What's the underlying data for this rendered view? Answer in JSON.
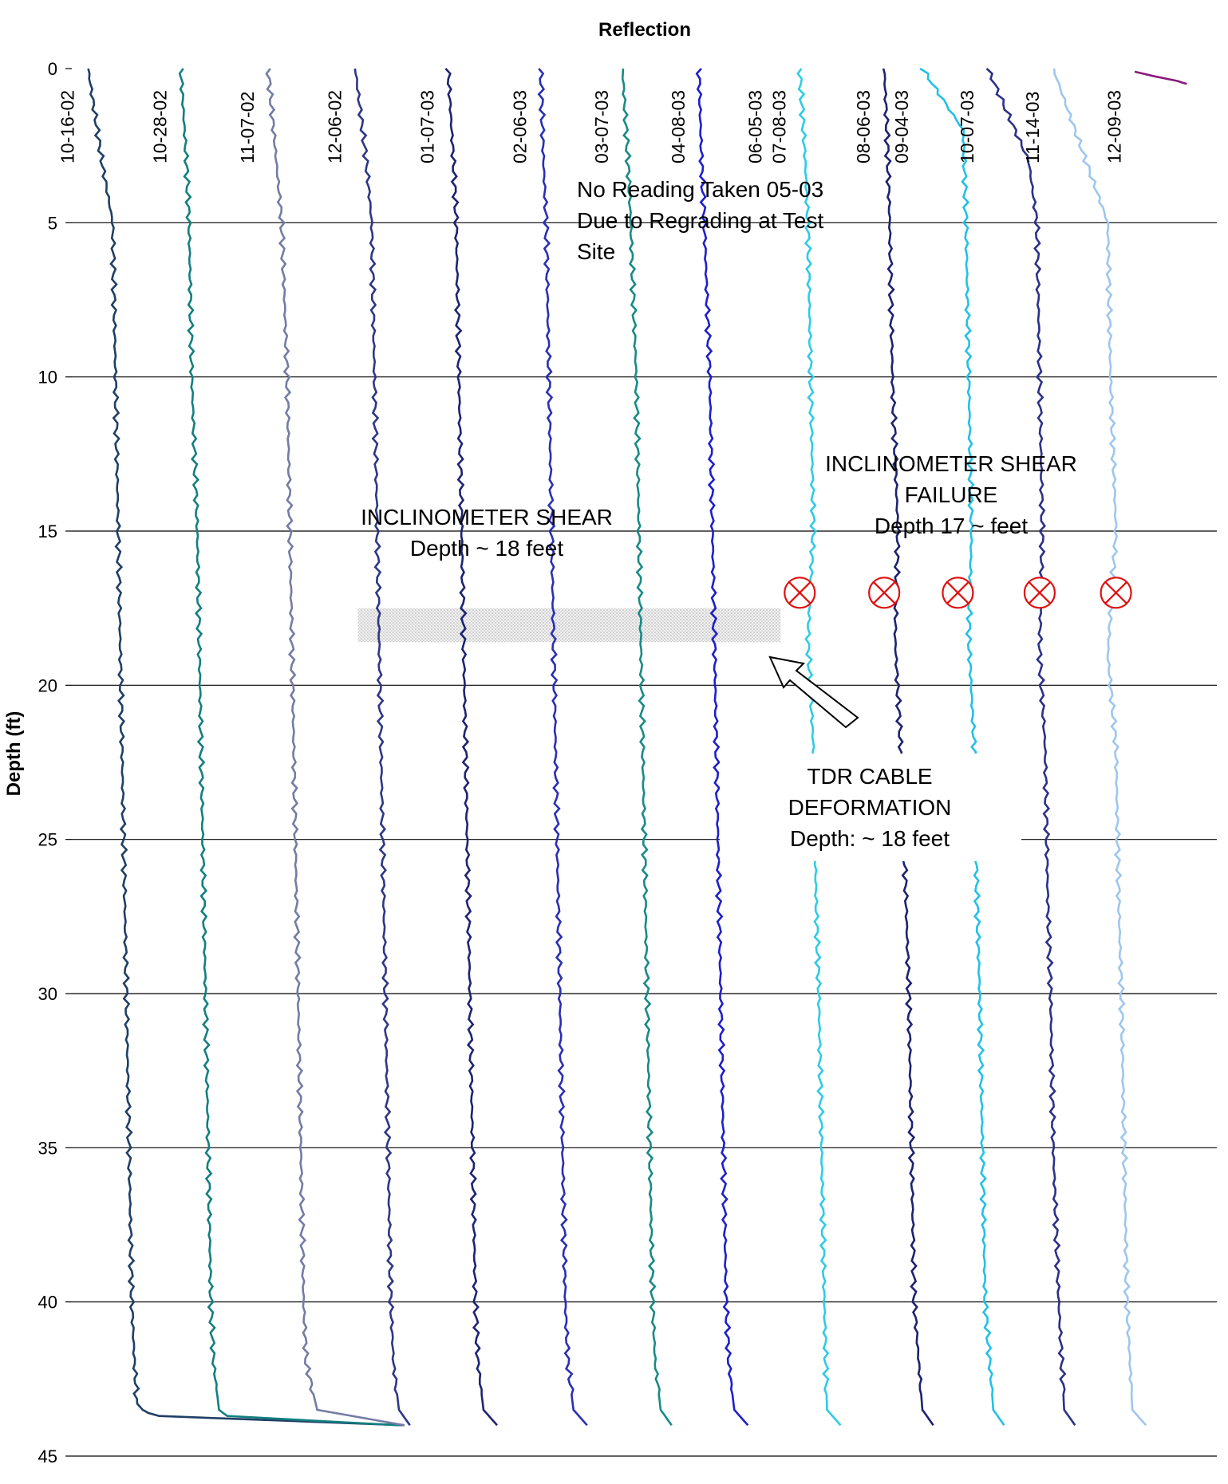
{
  "chart_data": {
    "type": "line",
    "title": "Reflection",
    "xlabel": "",
    "ylabel": "Depth (ft)",
    "ylim": [
      0,
      45
    ],
    "y_inverted": true,
    "yticks": [
      0,
      5,
      10,
      15,
      20,
      25,
      30,
      35,
      40,
      45
    ],
    "grid": "horizontal",
    "series": [
      {
        "name": "10-16-02",
        "color": "#1f3f66",
        "x": [
          0.6,
          1.1,
          1.5,
          1.6,
          1.7,
          1.8,
          1.9,
          2.0,
          2.1,
          2.2,
          2.3,
          2.4,
          2.6,
          2.8,
          3.2,
          12.2
        ],
        "depth": [
          0,
          3,
          5,
          10,
          15,
          20,
          25,
          30,
          35,
          40,
          42,
          43.3,
          43.5,
          43.6,
          43.7,
          44.0
        ]
      },
      {
        "name": "10-28-02",
        "color": "#137f80",
        "x": [
          4.0,
          4.2,
          4.3,
          4.4,
          4.6,
          4.7,
          4.8,
          4.9,
          5.0,
          5.1,
          5.2,
          5.4,
          5.7,
          12.0
        ],
        "depth": [
          0,
          3,
          5,
          10,
          15,
          20,
          25,
          30,
          35,
          40,
          42,
          43.5,
          43.7,
          44.0
        ]
      },
      {
        "name": "11-07-02",
        "color": "#737ca4",
        "x": [
          7.2,
          7.5,
          7.7,
          7.9,
          8.0,
          8.1,
          8.2,
          8.3,
          8.4,
          8.5,
          8.6,
          9.0,
          12.2
        ],
        "depth": [
          0,
          3,
          5,
          10,
          15,
          20,
          25,
          30,
          35,
          40,
          42,
          43.5,
          44.0
        ]
      },
      {
        "name": "12-06-02",
        "color": "#2d3786",
        "x": [
          10.4,
          10.8,
          11.0,
          11.1,
          11.2,
          11.3,
          11.4,
          11.5,
          11.6,
          11.7,
          11.8,
          12.0,
          12.4
        ],
        "depth": [
          0,
          3,
          5,
          10,
          15,
          20,
          25,
          30,
          35,
          40,
          42,
          43.5,
          44.0
        ]
      },
      {
        "name": "01-07-03",
        "color": "#1c2473",
        "x": [
          13.8,
          14.0,
          14.1,
          14.2,
          14.3,
          14.4,
          14.5,
          14.6,
          14.7,
          14.8,
          14.9,
          15.1,
          15.6
        ],
        "depth": [
          0,
          3,
          5,
          10,
          15,
          20,
          25,
          30,
          35,
          40,
          42,
          43.5,
          44.0
        ]
      },
      {
        "name": "02-06-03",
        "color": "#2a2fb5",
        "x": [
          17.2,
          17.3,
          17.4,
          17.5,
          17.6,
          17.7,
          17.8,
          17.9,
          18.0,
          18.1,
          18.2,
          18.4,
          18.9
        ],
        "depth": [
          0,
          3,
          5,
          10,
          15,
          20,
          25,
          30,
          35,
          40,
          42,
          43.5,
          44.0
        ]
      },
      {
        "name": "03-07-03",
        "color": "#188a86",
        "x": [
          20.2,
          20.4,
          20.5,
          20.7,
          20.8,
          20.9,
          21.0,
          21.1,
          21.2,
          21.3,
          21.4,
          21.6,
          22.0
        ],
        "depth": [
          0,
          3,
          5,
          10,
          15,
          20,
          25,
          30,
          35,
          40,
          42,
          43.5,
          44.0
        ]
      },
      {
        "name": "04-08-03",
        "color": "#1e1fcc",
        "x": [
          23.0,
          23.1,
          23.2,
          23.4,
          23.5,
          23.6,
          23.7,
          23.8,
          23.9,
          24.0,
          24.1,
          24.3,
          24.8
        ],
        "depth": [
          0,
          3,
          5,
          10,
          15,
          20,
          25,
          30,
          35,
          40,
          42,
          43.5,
          44.0
        ]
      },
      {
        "name": "07-08-03",
        "color": "#2ecbe6",
        "x": [
          26.7,
          26.9,
          27.0,
          27.1,
          27.2,
          27.0,
          27.2,
          27.3,
          27.4,
          27.5,
          27.6,
          27.7,
          28.2
        ],
        "depth": [
          0,
          3,
          5,
          10,
          15,
          18.5,
          22,
          27,
          30,
          35,
          40,
          43.5,
          44.0
        ]
      },
      {
        "name": "08-06-03",
        "color": "#1c2370",
        "x": [
          29.8,
          29.9,
          30.0,
          30.1,
          30.3,
          30.2,
          30.4,
          30.6,
          30.7,
          30.8,
          30.9,
          31.2,
          31.6
        ],
        "depth": [
          0,
          2,
          5,
          10,
          15,
          18.5,
          22,
          27,
          30,
          35,
          40,
          43.5,
          44.0
        ]
      },
      {
        "name": "09-04-03",
        "color": "#22c0e8",
        "x": [
          31.2,
          32.7,
          32.8,
          32.9,
          33.0,
          32.9,
          33.1,
          33.2,
          33.3,
          33.4,
          33.5,
          33.8,
          34.2
        ],
        "depth": [
          0,
          2,
          5,
          10,
          15,
          18.5,
          22,
          27,
          30,
          35,
          40,
          43.5,
          44.0
        ]
      },
      {
        "name": "10-07-03",
        "color": "#2b3188",
        "x": [
          33.6,
          35.1,
          35.4,
          35.5,
          35.6,
          35.5,
          35.7,
          35.8,
          35.9,
          36.0,
          36.2,
          36.4,
          36.8
        ],
        "depth": [
          0,
          3,
          5,
          10,
          15,
          19,
          22,
          27,
          30,
          35,
          40,
          43.5,
          44.0
        ]
      },
      {
        "name": "11-14-03",
        "color": "#9ec6ee",
        "x": [
          36.0,
          37.2,
          38.0,
          38.1,
          38.3,
          38.0,
          38.3,
          38.4,
          38.5,
          38.6,
          38.7,
          38.9,
          39.4
        ],
        "depth": [
          0,
          3,
          5,
          10,
          15,
          19,
          22,
          27,
          30,
          35,
          40,
          43.5,
          44.0
        ]
      },
      {
        "name": "12-09-03",
        "color": "#8a1a7a",
        "x": [
          39.0,
          40.5,
          40.9
        ],
        "depth": [
          0.1,
          0.4,
          0.5
        ]
      }
    ],
    "annotations": [
      {
        "lines": [
          "No Reading Taken 05-03",
          "Due to Regrading at Test",
          "Site"
        ]
      },
      {
        "lines": [
          "INCLINOMETER SHEAR",
          "Depth ~ 18 feet"
        ]
      },
      {
        "lines": [
          "INCLINOMETER SHEAR",
          "FAILURE",
          "Depth 17 ~ feet"
        ]
      },
      {
        "lines": [
          "TDR CABLE",
          "DEFORMATION",
          "Depth: ~ 18 feet"
        ]
      }
    ],
    "extra_label": "06-05-03",
    "failure_markers_depth": 17,
    "failure_markers_x": [
      26.7,
      29.8,
      32.5,
      35.5,
      38.3
    ],
    "shear_zone_depth": [
      17.5,
      18.6
    ]
  }
}
